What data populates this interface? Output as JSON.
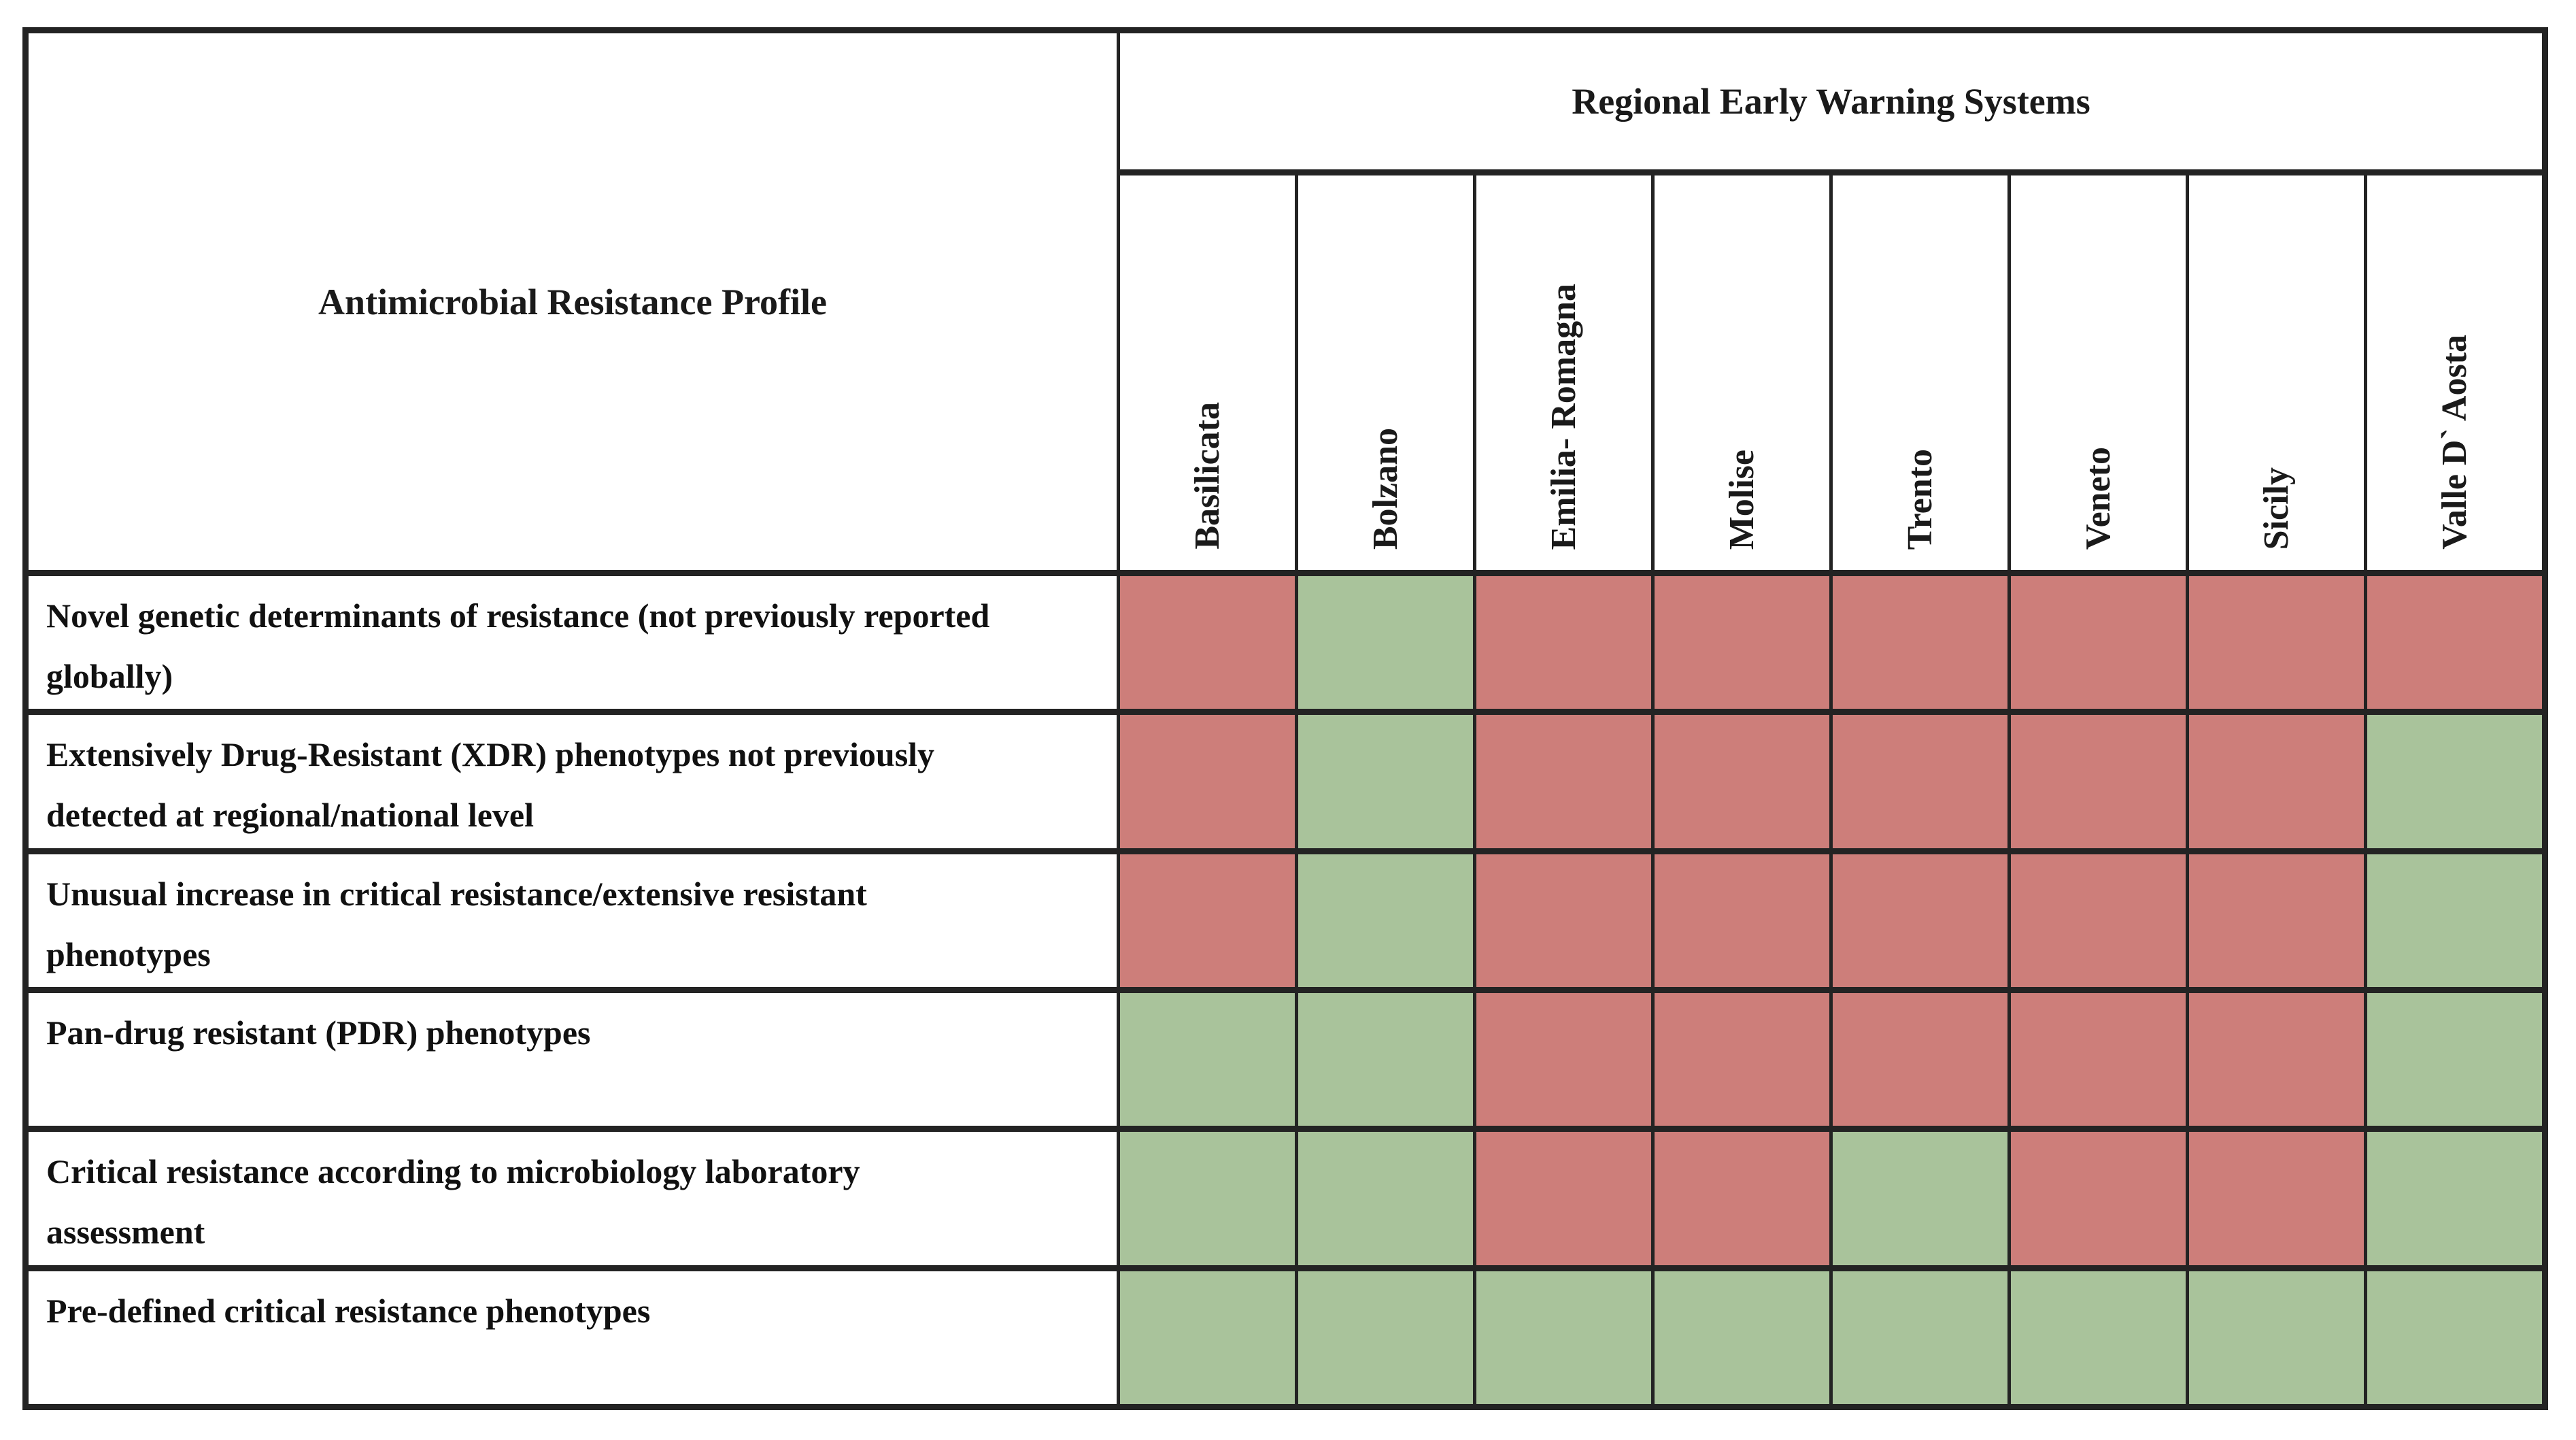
{
  "header": {
    "corner": "Antimicrobial Resistance Profile",
    "group": "Regional Early Warning Systems"
  },
  "colors": {
    "red": "#cd7e7a",
    "green": "#a9c39b",
    "grid_line": "#232323",
    "background": "#ffffff"
  },
  "chart_data": {
    "type": "heatmap",
    "x_axis_label": "Regional Early Warning Systems",
    "y_axis_label": "Antimicrobial Resistance Profile",
    "x_categories": [
      "Basilicata",
      "Bolzano",
      "Emilia- Romagna",
      "Molise",
      "Trento",
      "Veneto",
      "Sicily",
      "Valle D` Aosta"
    ],
    "y_categories": [
      "Novel genetic determinants of resistance (not previously reported globally)",
      "Extensively Drug-Resistant (XDR) phenotypes not previously detected at regional/national level",
      "Unusual increase in critical resistance/extensive resistant phenotypes",
      "Pan-drug resistant (PDR) phenotypes",
      "Critical resistance according to microbiology laboratory assessment",
      "Pre-defined critical resistance phenotypes"
    ],
    "values": [
      [
        "red",
        "green",
        "red",
        "red",
        "red",
        "red",
        "red",
        "red"
      ],
      [
        "red",
        "green",
        "red",
        "red",
        "red",
        "red",
        "red",
        "green"
      ],
      [
        "red",
        "green",
        "red",
        "red",
        "red",
        "red",
        "red",
        "green"
      ],
      [
        "green",
        "green",
        "red",
        "red",
        "red",
        "red",
        "red",
        "green"
      ],
      [
        "green",
        "green",
        "red",
        "red",
        "green",
        "red",
        "red",
        "green"
      ],
      [
        "green",
        "green",
        "green",
        "green",
        "green",
        "green",
        "green",
        "green"
      ]
    ],
    "cell_color_hex": {
      "red": "#cd7e7a",
      "green": "#a9c39b"
    },
    "legend_position": "none",
    "grid": true
  }
}
